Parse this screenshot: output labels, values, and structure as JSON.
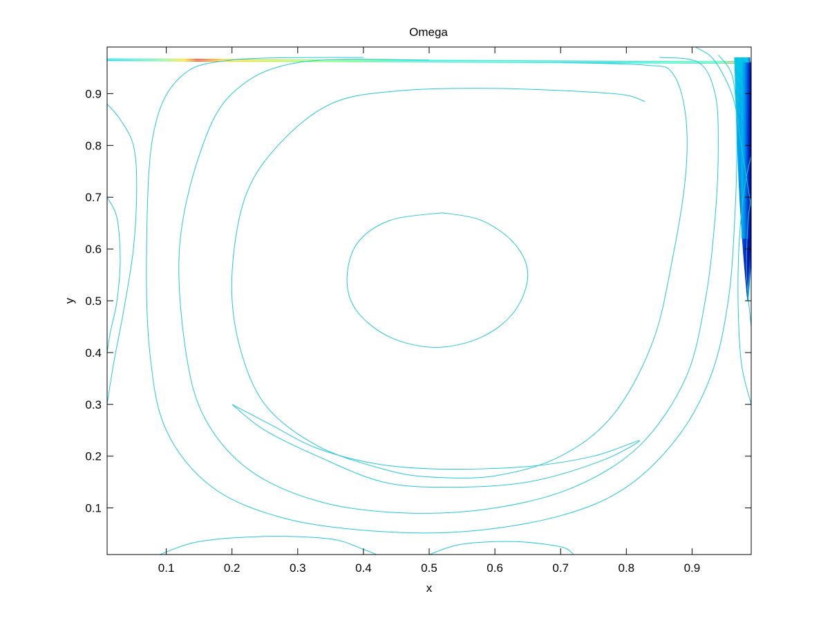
{
  "chart_data": {
    "type": "contour",
    "title": "Omega",
    "xlabel": "x",
    "ylabel": "y",
    "xlim": [
      0.01,
      0.99
    ],
    "ylim": [
      0.01,
      0.99
    ],
    "xticks": [
      0.1,
      0.2,
      0.3,
      0.4,
      0.5,
      0.6,
      0.7,
      0.8,
      0.9
    ],
    "yticks": [
      0.1,
      0.2,
      0.3,
      0.4,
      0.5,
      0.6,
      0.7,
      0.8,
      0.9
    ],
    "xtick_labels": [
      "0.1",
      "0.2",
      "0.3",
      "0.4",
      "0.5",
      "0.6",
      "0.7",
      "0.8",
      "0.9"
    ],
    "ytick_labels": [
      "0.1",
      "0.2",
      "0.3",
      "0.4",
      "0.5",
      "0.6",
      "0.7",
      "0.8",
      "0.9"
    ],
    "grid": false,
    "line_color": "#20c8d8",
    "colormap": "jet",
    "vortex_center": [
      0.52,
      0.54
    ],
    "contours": [
      {
        "level": "core",
        "points": [
          [
            0.52,
            0.67
          ],
          [
            0.58,
            0.655
          ],
          [
            0.63,
            0.61
          ],
          [
            0.65,
            0.55
          ],
          [
            0.63,
            0.48
          ],
          [
            0.58,
            0.43
          ],
          [
            0.51,
            0.41
          ],
          [
            0.44,
            0.43
          ],
          [
            0.39,
            0.48
          ],
          [
            0.375,
            0.54
          ],
          [
            0.39,
            0.61
          ],
          [
            0.44,
            0.655
          ],
          [
            0.52,
            0.67
          ]
        ]
      },
      {
        "level": "ring-1",
        "points": [
          [
            0.828,
            0.885
          ],
          [
            0.78,
            0.9
          ],
          [
            0.6,
            0.91
          ],
          [
            0.45,
            0.905
          ],
          [
            0.35,
            0.88
          ],
          [
            0.27,
            0.8
          ],
          [
            0.22,
            0.7
          ],
          [
            0.2,
            0.55
          ],
          [
            0.21,
            0.42
          ],
          [
            0.25,
            0.3
          ],
          [
            0.33,
            0.22
          ],
          [
            0.43,
            0.175
          ],
          [
            0.5,
            0.16
          ],
          [
            0.6,
            0.162
          ],
          [
            0.7,
            0.2
          ],
          [
            0.78,
            0.28
          ],
          [
            0.84,
            0.42
          ],
          [
            0.87,
            0.58
          ],
          [
            0.89,
            0.74
          ],
          [
            0.89,
            0.86
          ],
          [
            0.87,
            0.94
          ],
          [
            0.83,
            0.955
          ],
          [
            0.7,
            0.96
          ]
        ]
      },
      {
        "level": "ring-2",
        "points": [
          [
            0.5,
            0.965
          ],
          [
            0.3,
            0.96
          ],
          [
            0.2,
            0.9
          ],
          [
            0.15,
            0.78
          ],
          [
            0.12,
            0.6
          ],
          [
            0.13,
            0.4
          ],
          [
            0.16,
            0.27
          ],
          [
            0.23,
            0.17
          ],
          [
            0.34,
            0.11
          ],
          [
            0.47,
            0.09
          ],
          [
            0.6,
            0.1
          ],
          [
            0.72,
            0.14
          ],
          [
            0.82,
            0.22
          ],
          [
            0.89,
            0.35
          ],
          [
            0.92,
            0.5
          ],
          [
            0.935,
            0.66
          ],
          [
            0.94,
            0.8
          ],
          [
            0.935,
            0.9
          ],
          [
            0.91,
            0.96
          ],
          [
            0.85,
            0.97
          ]
        ]
      },
      {
        "level": "ring-3",
        "points": [
          [
            0.4,
            0.97
          ],
          [
            0.2,
            0.965
          ],
          [
            0.12,
            0.93
          ],
          [
            0.08,
            0.82
          ],
          [
            0.07,
            0.6
          ],
          [
            0.075,
            0.4
          ],
          [
            0.1,
            0.25
          ],
          [
            0.17,
            0.14
          ],
          [
            0.28,
            0.08
          ],
          [
            0.42,
            0.055
          ],
          [
            0.56,
            0.055
          ],
          [
            0.7,
            0.085
          ],
          [
            0.8,
            0.14
          ],
          [
            0.88,
            0.24
          ],
          [
            0.93,
            0.36
          ],
          [
            0.955,
            0.5
          ],
          [
            0.965,
            0.66
          ],
          [
            0.968,
            0.82
          ],
          [
            0.962,
            0.93
          ],
          [
            0.94,
            0.975
          ]
        ]
      },
      {
        "level": "lower-lobe",
        "points": [
          [
            0.2,
            0.3
          ],
          [
            0.25,
            0.25
          ],
          [
            0.33,
            0.2
          ],
          [
            0.43,
            0.15
          ],
          [
            0.53,
            0.14
          ],
          [
            0.65,
            0.15
          ],
          [
            0.76,
            0.19
          ],
          [
            0.82,
            0.23
          ],
          [
            0.75,
            0.2
          ],
          [
            0.65,
            0.18
          ],
          [
            0.52,
            0.175
          ],
          [
            0.42,
            0.185
          ],
          [
            0.33,
            0.215
          ],
          [
            0.26,
            0.26
          ],
          [
            0.2,
            0.3
          ]
        ]
      },
      {
        "level": "left-wall-1",
        "points": [
          [
            0.01,
            0.88
          ],
          [
            0.03,
            0.85
          ],
          [
            0.05,
            0.8
          ],
          [
            0.055,
            0.72
          ],
          [
            0.05,
            0.6
          ],
          [
            0.035,
            0.48
          ],
          [
            0.02,
            0.38
          ],
          [
            0.01,
            0.3
          ]
        ]
      },
      {
        "level": "left-wall-2",
        "points": [
          [
            0.01,
            0.7
          ],
          [
            0.025,
            0.66
          ],
          [
            0.03,
            0.58
          ],
          [
            0.025,
            0.5
          ],
          [
            0.015,
            0.44
          ],
          [
            0.01,
            0.4
          ]
        ]
      },
      {
        "level": "bottom-wall-1",
        "points": [
          [
            0.09,
            0.01
          ],
          [
            0.15,
            0.035
          ],
          [
            0.25,
            0.045
          ],
          [
            0.35,
            0.04
          ],
          [
            0.4,
            0.02
          ],
          [
            0.42,
            0.01
          ]
        ]
      },
      {
        "level": "bottom-wall-2",
        "points": [
          [
            0.5,
            0.01
          ],
          [
            0.55,
            0.03
          ],
          [
            0.63,
            0.035
          ],
          [
            0.7,
            0.025
          ],
          [
            0.72,
            0.01
          ]
        ]
      },
      {
        "level": "right-wall-1",
        "points": [
          [
            0.99,
            0.3
          ],
          [
            0.975,
            0.38
          ],
          [
            0.97,
            0.5
          ],
          [
            0.972,
            0.62
          ],
          [
            0.98,
            0.72
          ],
          [
            0.99,
            0.78
          ]
        ]
      },
      {
        "level": "right-wall-2",
        "points": [
          [
            0.99,
            0.45
          ],
          [
            0.983,
            0.55
          ],
          [
            0.985,
            0.65
          ],
          [
            0.99,
            0.7
          ]
        ]
      },
      {
        "level": "top-corner",
        "points": [
          [
            0.905,
            0.99
          ],
          [
            0.93,
            0.97
          ],
          [
            0.95,
            0.93
          ],
          [
            0.965,
            0.88
          ],
          [
            0.975,
            0.8
          ],
          [
            0.985,
            0.72
          ],
          [
            0.99,
            0.68
          ]
        ]
      }
    ]
  }
}
